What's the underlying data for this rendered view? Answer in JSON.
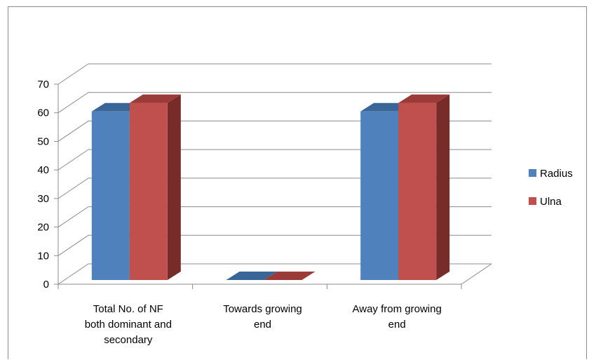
{
  "colors": {
    "series_front": [
      "#4f81bd",
      "#c0504d"
    ],
    "series_side": [
      "#2c4d75",
      "#772c2a"
    ],
    "series_top": [
      "#3a6597",
      "#9b3b39"
    ],
    "grid": "#8c8c8c",
    "text": "#000000"
  },
  "chart_data": {
    "type": "bar",
    "style": "3d-clustered-column",
    "categories": [
      [
        "Total No. of NF",
        "both dominant and",
        "secondary"
      ],
      [
        "Towards growing",
        "end"
      ],
      [
        "Away from growing",
        "end"
      ]
    ],
    "series": [
      {
        "name": "Radius",
        "values": [
          59,
          0,
          59
        ]
      },
      {
        "name": "Ulna",
        "values": [
          62,
          0,
          62
        ]
      }
    ],
    "ylim": [
      0,
      70
    ],
    "yticks": [
      0,
      10,
      20,
      30,
      40,
      50,
      60,
      70
    ],
    "grid": true,
    "legend": "right"
  }
}
